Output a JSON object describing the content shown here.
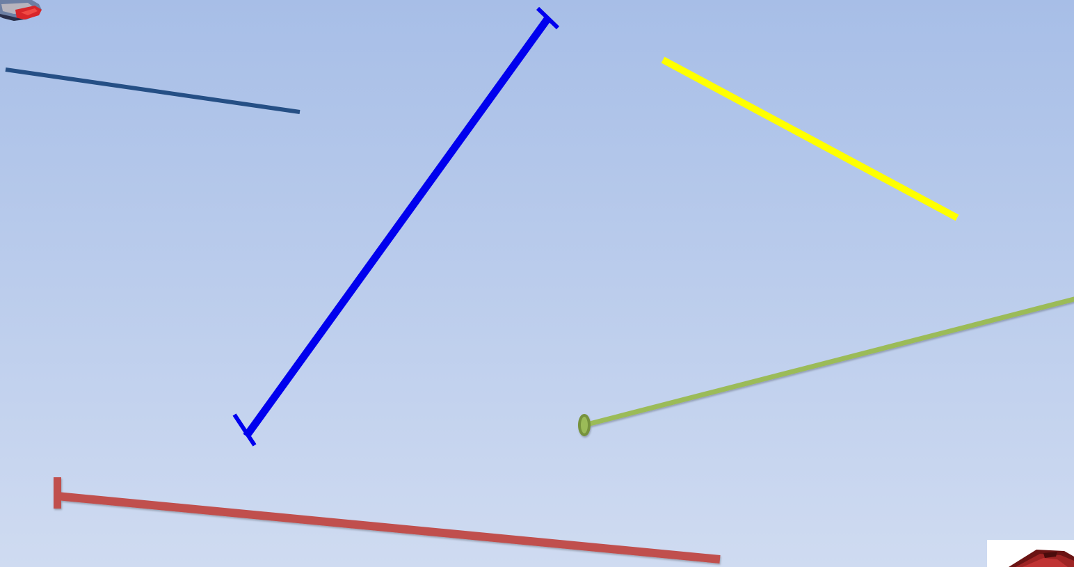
{
  "slide": {
    "background": {
      "top_color": "#a7bee7",
      "bottom_color": "#cfdbf1"
    },
    "segments": [
      {
        "name": "dark-blue-line",
        "color": "#254f85",
        "endpoints": "none"
      },
      {
        "name": "blue-segment",
        "color": "#0000ee",
        "endpoints": "tick-both"
      },
      {
        "name": "yellow-line",
        "color": "#ffff00",
        "endpoints": "none"
      },
      {
        "name": "green-ray",
        "color": "#9bbb59",
        "endpoints": "circle-start"
      },
      {
        "name": "red-ray",
        "color": "#c0504d",
        "endpoints": "tick-start"
      }
    ],
    "decorations": [
      {
        "name": "top-left-hat-icon"
      },
      {
        "name": "graduation-cap-icon"
      }
    ]
  }
}
